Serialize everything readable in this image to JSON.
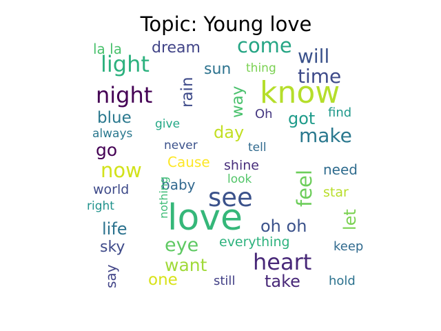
{
  "chart_data": {
    "type": "wordcloud",
    "title": "Topic: Young love",
    "palette": "viridis",
    "words": [
      {
        "text": "love",
        "color": "#35b779"
      },
      {
        "text": "know",
        "color": "#b5de2b"
      },
      {
        "text": "see",
        "color": "#3b528b"
      },
      {
        "text": "heart",
        "color": "#482878"
      },
      {
        "text": "light",
        "color": "#2cb17e"
      },
      {
        "text": "night",
        "color": "#440154"
      },
      {
        "text": "come",
        "color": "#25a584"
      },
      {
        "text": "feel",
        "color": "#6ccd5a"
      },
      {
        "text": "now",
        "color": "#d2e21b"
      },
      {
        "text": "time",
        "color": "#3e4a89"
      },
      {
        "text": "will",
        "color": "#3b528b"
      },
      {
        "text": "make",
        "color": "#2a788e"
      },
      {
        "text": "eye",
        "color": "#5ec962"
      },
      {
        "text": "want",
        "color": "#a0da39"
      },
      {
        "text": "take",
        "color": "#482878"
      },
      {
        "text": "let",
        "color": "#7ad151"
      },
      {
        "text": "oh oh",
        "color": "#3b528b"
      },
      {
        "text": "life",
        "color": "#2c728e"
      },
      {
        "text": "rain",
        "color": "#3e4a89"
      },
      {
        "text": "way",
        "color": "#4ac16d"
      },
      {
        "text": "day",
        "color": "#c2df23"
      },
      {
        "text": "got",
        "color": "#1e9b8a"
      },
      {
        "text": "go",
        "color": "#440154"
      },
      {
        "text": "blue",
        "color": "#2a788e"
      },
      {
        "text": "one",
        "color": "#d8e219"
      },
      {
        "text": "sky",
        "color": "#3e4a89"
      },
      {
        "text": "dream",
        "color": "#414487"
      },
      {
        "text": "sun",
        "color": "#2c728e"
      },
      {
        "text": "la la",
        "color": "#4ac16d"
      },
      {
        "text": "Cause",
        "color": "#fde725"
      },
      {
        "text": "baby",
        "color": "#31688e"
      },
      {
        "text": "world",
        "color": "#3e4a89"
      },
      {
        "text": "need",
        "color": "#2f6c8e"
      },
      {
        "text": "shine",
        "color": "#472d7b"
      },
      {
        "text": "everything",
        "color": "#2db27d"
      },
      {
        "text": "say",
        "color": "#414487"
      },
      {
        "text": "still",
        "color": "#424086"
      },
      {
        "text": "never",
        "color": "#3b528b"
      },
      {
        "text": "star",
        "color": "#b8de29"
      },
      {
        "text": "keep",
        "color": "#306a8e"
      },
      {
        "text": "hold",
        "color": "#2c728e"
      },
      {
        "text": "find",
        "color": "#1f988b"
      },
      {
        "text": "Oh",
        "color": "#453781"
      },
      {
        "text": "give",
        "color": "#22a785"
      },
      {
        "text": "tell",
        "color": "#306a8e"
      },
      {
        "text": "look",
        "color": "#52c569"
      },
      {
        "text": "right",
        "color": "#20928c"
      },
      {
        "text": "always",
        "color": "#2a788e"
      },
      {
        "text": "thing",
        "color": "#7ad151"
      },
      {
        "text": "nothing",
        "color": "#3bbb75"
      }
    ]
  }
}
